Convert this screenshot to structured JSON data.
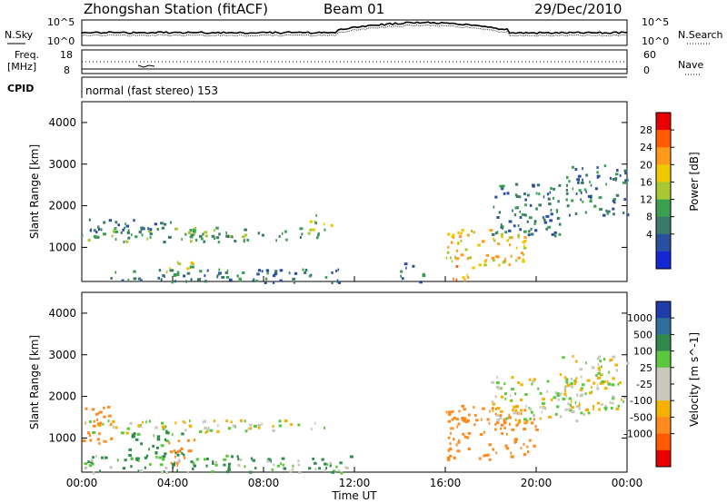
{
  "header": {
    "station": "Zhongshan Station (fitACF)",
    "beam": "Beam 01",
    "date": "29/Dec/2010"
  },
  "strip": {
    "nsky_label": "N.Sky",
    "nsearch_label": "N.Search",
    "nsky_ticks": [
      "10^5",
      "10^0"
    ],
    "nsearch_ticks": [
      "10^5",
      "10^0"
    ],
    "freq_label_top": "Freq.",
    "freq_label_unit": "[MHz]",
    "freq_ticks": [
      "18",
      "8"
    ],
    "nave_label": "Nave",
    "nave_ticks": [
      "60",
      "0"
    ],
    "cpid_label": "CPID",
    "cpid_text": "normal (fast stereo) 153"
  },
  "panels": {
    "ylabel": "Slant Range [km]",
    "yticks": [
      "4000",
      "3000",
      "2000",
      "1000"
    ],
    "xlabel": "Time UT",
    "xticks": [
      "00:00",
      "04:00",
      "08:00",
      "12:00",
      "16:00",
      "20:00",
      "00:00"
    ]
  },
  "power_bar": {
    "label": "Power [dB]",
    "ticks": [
      "28",
      "24",
      "20",
      "16",
      "12",
      "8",
      "4"
    ],
    "colors": [
      "#e80000",
      "#ff5a00",
      "#ff9a1a",
      "#f0c800",
      "#a8c832",
      "#3aa050",
      "#3a7a6a",
      "#2850a0",
      "#1428d2"
    ]
  },
  "velocity_bar": {
    "label": "Velocity [m s^-1]",
    "ticks": [
      "1000",
      "500",
      "100",
      "25",
      "-25",
      "-100",
      "-500",
      "-1000"
    ],
    "colors": [
      "#1e3ca8",
      "#2f6e9a",
      "#2f8a4e",
      "#5ac83c",
      "#c8c8bc",
      "#c8c8bc",
      "#f5b000",
      "#ff8a1e",
      "#ff5a00",
      "#e80000"
    ]
  },
  "chart_data": [
    {
      "type": "heatmap",
      "title": "Zhongshan Station (fitACF) Beam 01 29/Dec/2010",
      "xlabel": "Time UT",
      "ylabel": "Slant Range [km]",
      "xticks": [
        "00:00",
        "04:00",
        "08:00",
        "12:00",
        "16:00",
        "20:00",
        "00:00"
      ],
      "xlim": [
        0,
        24
      ],
      "ylim": [
        180,
        4500
      ],
      "colorbar": {
        "label": "Power [dB]",
        "ticks": [
          4,
          8,
          12,
          16,
          20,
          24,
          28
        ]
      },
      "echo_regions": [
        {
          "t": [
            0.0,
            10.8
          ],
          "range": [
            1150,
            1500
          ],
          "power": 12
        },
        {
          "t": [
            0.3,
            4.0
          ],
          "range": [
            1350,
            1700
          ],
          "power": 8
        },
        {
          "t": [
            10.0,
            11.0
          ],
          "range": [
            1450,
            1800
          ],
          "power": 16
        },
        {
          "t": [
            1.0,
            11.5
          ],
          "range": [
            180,
            500
          ],
          "power": 8
        },
        {
          "t": [
            3.5,
            5.0
          ],
          "range": [
            350,
            700
          ],
          "power": 16
        },
        {
          "t": [
            14.0,
            15.0
          ],
          "range": [
            180,
            650
          ],
          "power": 8
        },
        {
          "t": [
            16.0,
            19.5
          ],
          "range": [
            600,
            1500
          ],
          "power": 20
        },
        {
          "t": [
            16.3,
            17.2
          ],
          "range": [
            180,
            600
          ],
          "power": 24
        },
        {
          "t": [
            18.0,
            21.0
          ],
          "range": [
            1300,
            2600
          ],
          "power": 8
        },
        {
          "t": [
            21.3,
            24.0
          ],
          "range": [
            1800,
            3000
          ],
          "power": 8
        }
      ]
    },
    {
      "type": "heatmap",
      "xlabel": "Time UT",
      "ylabel": "Slant Range [km]",
      "xticks": [
        "00:00",
        "04:00",
        "08:00",
        "12:00",
        "16:00",
        "20:00",
        "00:00"
      ],
      "xlim": [
        0,
        24
      ],
      "ylim": [
        180,
        4500
      ],
      "colorbar": {
        "label": "Velocity [m s^-1]",
        "ticks": [
          1000,
          500,
          100,
          25,
          -25,
          -100,
          -500,
          -1000
        ]
      },
      "echo_regions": [
        {
          "t": [
            0.0,
            10.8
          ],
          "range": [
            1150,
            1450
          ],
          "velocity": 0
        },
        {
          "t": [
            0.0,
            1.3
          ],
          "range": [
            900,
            1800
          ],
          "velocity": -300
        },
        {
          "t": [
            2.0,
            4.5
          ],
          "range": [
            500,
            1200
          ],
          "velocity": 100
        },
        {
          "t": [
            3.8,
            5.0
          ],
          "range": [
            350,
            1000
          ],
          "velocity": -300
        },
        {
          "t": [
            0.0,
            12.0
          ],
          "range": [
            180,
            600
          ],
          "velocity": 60
        },
        {
          "t": [
            16.0,
            20.0
          ],
          "range": [
            500,
            1800
          ],
          "velocity": -400
        },
        {
          "t": [
            18.0,
            22.0
          ],
          "range": [
            1400,
            2500
          ],
          "velocity": 0
        },
        {
          "t": [
            21.0,
            24.0
          ],
          "range": [
            1600,
            3000
          ],
          "velocity": 0
        }
      ]
    }
  ]
}
